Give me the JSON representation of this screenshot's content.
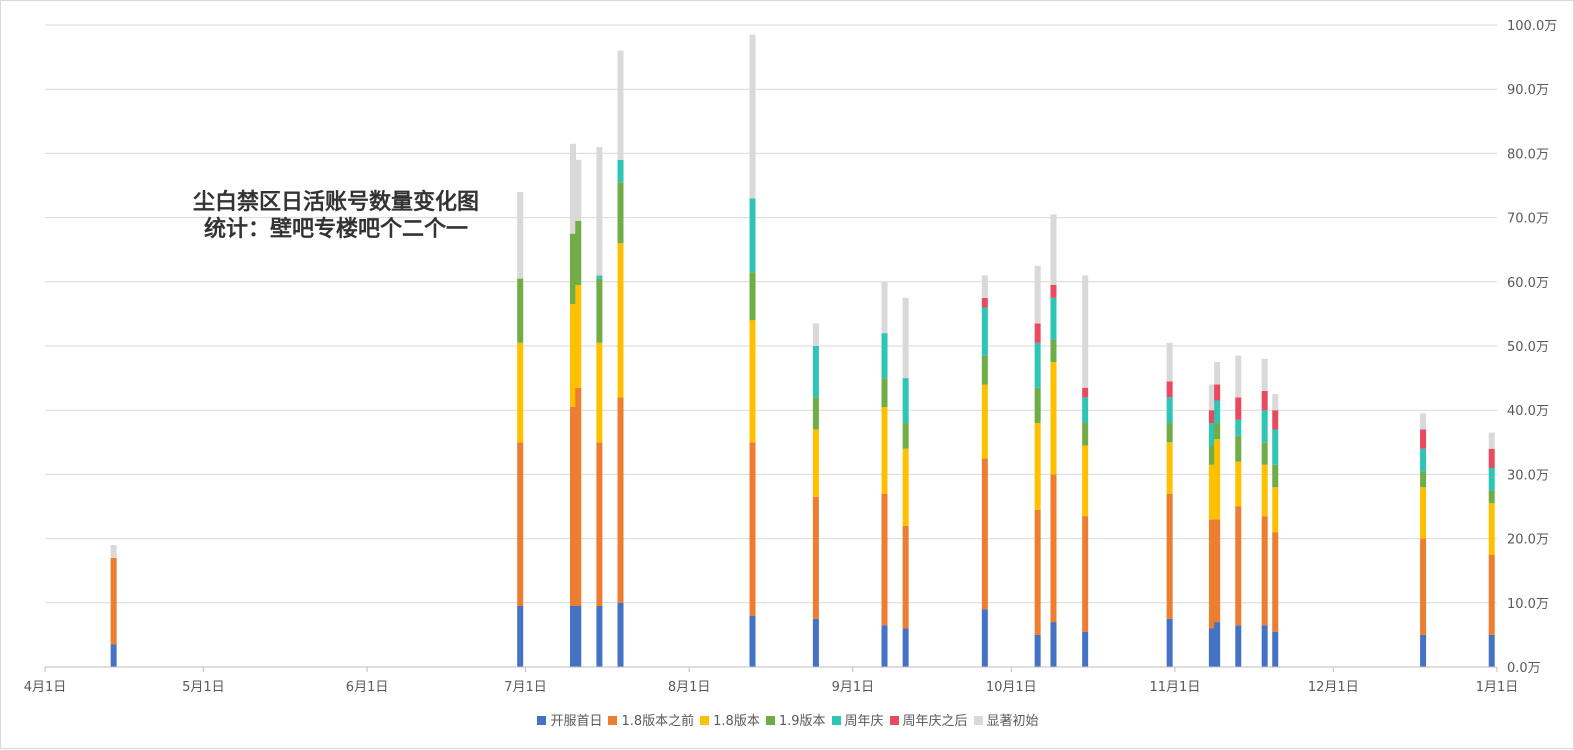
{
  "chart_data": {
    "type": "bar",
    "stacked": true,
    "title": "尘白禁区日活账号数量变化图",
    "subtitle": "统计：壁吧专楼吧个二个一",
    "x_axis": {
      "type": "date",
      "range": [
        "2023-04-01",
        "2024-01-01"
      ],
      "ticks": [
        "4月1日",
        "5月1日",
        "6月1日",
        "7月1日",
        "8月1日",
        "9月1日",
        "10月1日",
        "11月1日",
        "12月1日",
        "1月1日"
      ]
    },
    "y_axis": {
      "position": "right",
      "unit": "万",
      "ylim": [
        0,
        100
      ],
      "ticks": [
        "0.0万",
        "10.0万",
        "20.0万",
        "30.0万",
        "40.0万",
        "50.0万",
        "60.0万",
        "70.0万",
        "80.0万",
        "90.0万",
        "100.0万"
      ]
    },
    "grid": true,
    "legend_position": "bottom",
    "series": [
      {
        "name": "开服首日",
        "color": "#4472C4"
      },
      {
        "name": "1.8版本之前",
        "color": "#ED7D31"
      },
      {
        "name": "1.8版本",
        "color": "#FFC000"
      },
      {
        "name": "1.9版本",
        "color": "#70AD47"
      },
      {
        "name": "周年庆",
        "color": "#2EC4B6"
      },
      {
        "name": "周年庆之后",
        "color": "#E84A5F"
      },
      {
        "name": "显著初始",
        "color": "#D9D9D9"
      }
    ],
    "bars": [
      {
        "date": "2023-04-14",
        "values": [
          3.5,
          13.5,
          0,
          0,
          0,
          0,
          2
        ]
      },
      {
        "date": "2023-06-30",
        "values": [
          9.5,
          25.5,
          15.5,
          10,
          0,
          0,
          13.5
        ]
      },
      {
        "date": "2023-07-10",
        "values": [
          9.5,
          31,
          16,
          11,
          0,
          0,
          14
        ]
      },
      {
        "date": "2023-07-11",
        "values": [
          9.5,
          34,
          16,
          10,
          0,
          0,
          9.5
        ]
      },
      {
        "date": "2023-07-15",
        "values": [
          9.5,
          25.5,
          15.5,
          10,
          0.5,
          0,
          20
        ]
      },
      {
        "date": "2023-07-19",
        "values": [
          10,
          32,
          24,
          9.5,
          3.5,
          0,
          17
        ]
      },
      {
        "date": "2023-08-13",
        "values": [
          8,
          27,
          19,
          7.5,
          11.5,
          0,
          25.5
        ]
      },
      {
        "date": "2023-08-25",
        "values": [
          7.5,
          19,
          10.5,
          5,
          8,
          0,
          3.5
        ]
      },
      {
        "date": "2023-09-07",
        "values": [
          6.5,
          20.5,
          13.5,
          4.5,
          7,
          0,
          8
        ]
      },
      {
        "date": "2023-09-11",
        "values": [
          6,
          16,
          12,
          4,
          7,
          0,
          12.5
        ]
      },
      {
        "date": "2023-09-26",
        "values": [
          9,
          23.5,
          11.5,
          4.5,
          7.5,
          1.5,
          3.5
        ]
      },
      {
        "date": "2023-10-06",
        "values": [
          5,
          19.5,
          13.5,
          5.5,
          7,
          3,
          9
        ]
      },
      {
        "date": "2023-10-09",
        "values": [
          7,
          23,
          17.5,
          3.5,
          6.5,
          2,
          11
        ]
      },
      {
        "date": "2023-10-15",
        "values": [
          5.5,
          18,
          11,
          3.5,
          4,
          1.5,
          17.5
        ]
      },
      {
        "date": "2023-10-31",
        "values": [
          7.5,
          19.5,
          8,
          3,
          4,
          2.5,
          6
        ]
      },
      {
        "date": "2023-11-08",
        "values": [
          6,
          17,
          8.5,
          3,
          3.5,
          2,
          4
        ]
      },
      {
        "date": "2023-11-09",
        "values": [
          7,
          16,
          12.5,
          2.5,
          3.5,
          2.5,
          3.5
        ]
      },
      {
        "date": "2023-11-13",
        "values": [
          6.5,
          18.5,
          7,
          4,
          2.5,
          3.5,
          6.5
        ]
      },
      {
        "date": "2023-11-18",
        "values": [
          6.5,
          17,
          8,
          3.5,
          5,
          3,
          5
        ]
      },
      {
        "date": "2023-11-20",
        "values": [
          5.5,
          15.5,
          7,
          3.5,
          5.5,
          3,
          2.5
        ]
      },
      {
        "date": "2023-12-18",
        "values": [
          5,
          15,
          8,
          2.5,
          3.5,
          3,
          2.5
        ]
      },
      {
        "date": "2023-12-31",
        "values": [
          5,
          12.5,
          8,
          2,
          3.5,
          3,
          2.5
        ]
      }
    ]
  }
}
